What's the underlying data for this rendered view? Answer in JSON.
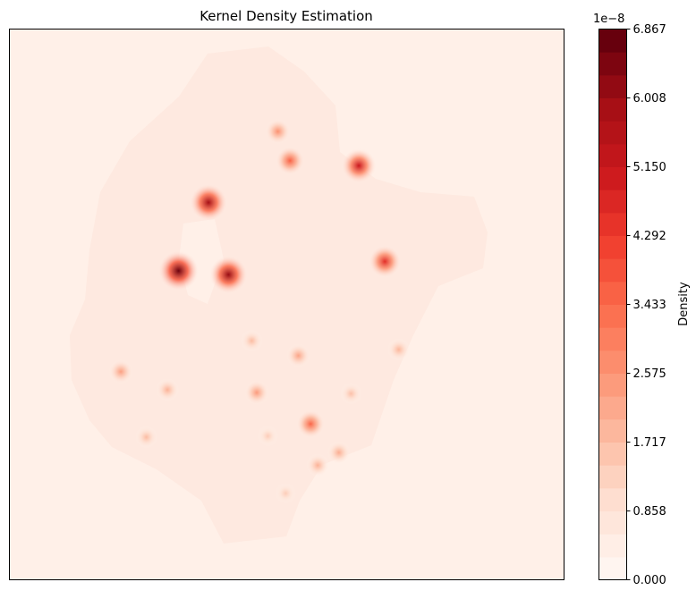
{
  "chart_data": {
    "type": "heatmap",
    "title": "Kernel Density Estimation",
    "xlabel": "",
    "ylabel": "",
    "axes_ticks_visible": false,
    "colormap": "Reds",
    "colorbar": {
      "label": "Density",
      "offset_text": "1e−8",
      "range": [
        0.0,
        6.867
      ],
      "levels": 24,
      "ticks": [
        0.0,
        0.858,
        1.717,
        2.575,
        3.433,
        4.292,
        5.15,
        6.008,
        6.867
      ],
      "tick_labels": [
        "0.000",
        "0.858",
        "1.717",
        "2.575",
        "3.433",
        "4.292",
        "5.150",
        "6.008",
        "6.867"
      ]
    },
    "hotspots": [
      {
        "x": 0.305,
        "y": 0.439,
        "density": 6.8
      },
      {
        "x": 0.395,
        "y": 0.446,
        "density": 6.2
      },
      {
        "x": 0.359,
        "y": 0.315,
        "density": 6.0
      },
      {
        "x": 0.63,
        "y": 0.248,
        "density": 5.2
      },
      {
        "x": 0.677,
        "y": 0.422,
        "density": 4.6
      },
      {
        "x": 0.506,
        "y": 0.239,
        "density": 3.6
      },
      {
        "x": 0.543,
        "y": 0.717,
        "density": 3.5
      },
      {
        "x": 0.484,
        "y": 0.186,
        "density": 2.6
      },
      {
        "x": 0.446,
        "y": 0.66,
        "density": 2.4
      },
      {
        "x": 0.201,
        "y": 0.622,
        "density": 2.3
      },
      {
        "x": 0.521,
        "y": 0.593,
        "density": 2.2
      },
      {
        "x": 0.594,
        "y": 0.769,
        "density": 2.0
      },
      {
        "x": 0.556,
        "y": 0.792,
        "density": 1.9
      },
      {
        "x": 0.285,
        "y": 0.655,
        "density": 1.9
      },
      {
        "x": 0.702,
        "y": 0.582,
        "density": 1.8
      },
      {
        "x": 0.437,
        "y": 0.566,
        "density": 1.7
      },
      {
        "x": 0.247,
        "y": 0.741,
        "density": 1.7
      },
      {
        "x": 0.616,
        "y": 0.662,
        "density": 1.6
      },
      {
        "x": 0.498,
        "y": 0.843,
        "density": 1.3
      },
      {
        "x": 0.466,
        "y": 0.739,
        "density": 1.3
      }
    ],
    "colors": {
      "background": "#fff0e8",
      "scale": [
        "#fff5f0",
        "#fee0d2",
        "#fcbba1",
        "#fc9272",
        "#fb6a4a",
        "#ef3b2c",
        "#cb181d",
        "#a50f15",
        "#67000d"
      ]
    }
  }
}
